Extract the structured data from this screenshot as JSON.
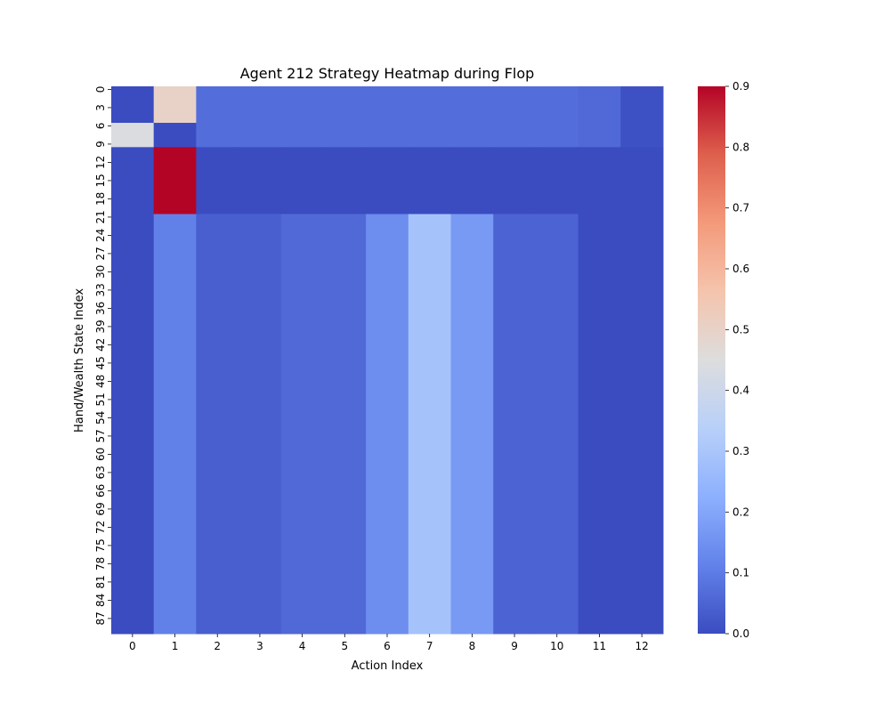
{
  "chart_data": {
    "type": "heatmap",
    "title": "Agent 212 Strategy Heatmap during Flop",
    "xlabel": "Action Index",
    "ylabel": "Hand/Wealth State Index",
    "x_categories": [
      0,
      1,
      2,
      3,
      4,
      5,
      6,
      7,
      8,
      9,
      10,
      11,
      12
    ],
    "y_tick_labels": [
      "0",
      "3",
      "6",
      "9",
      "12",
      "15",
      "18",
      "21",
      "24",
      "27",
      "30",
      "33",
      "36",
      "39",
      "42",
      "45",
      "48",
      "51",
      "54",
      "57",
      "60",
      "63",
      "66",
      "69",
      "72",
      "75",
      "78",
      "81",
      "84",
      "87"
    ],
    "y_tick_step": 3,
    "n_rows": 90,
    "colormap": "coolwarm",
    "vmin": 0.0,
    "vmax": 0.9,
    "colorbar_ticks": [
      "0.0",
      "0.1",
      "0.2",
      "0.3",
      "0.4",
      "0.5",
      "0.6",
      "0.7",
      "0.8",
      "0.9"
    ],
    "row_groups": [
      {
        "rows": [
          0,
          5
        ],
        "values": [
          0.0,
          0.5,
          0.07,
          0.07,
          0.07,
          0.07,
          0.07,
          0.07,
          0.07,
          0.07,
          0.07,
          0.06,
          0.01
        ]
      },
      {
        "rows": [
          6,
          9
        ],
        "values": [
          0.44,
          0.0,
          0.07,
          0.07,
          0.07,
          0.07,
          0.07,
          0.07,
          0.07,
          0.07,
          0.07,
          0.06,
          0.01
        ]
      },
      {
        "rows": [
          10,
          20
        ],
        "values": [
          0.0,
          0.9,
          0.0,
          0.0,
          0.0,
          0.0,
          0.0,
          0.0,
          0.0,
          0.0,
          0.0,
          0.0,
          0.0
        ]
      },
      {
        "rows": [
          21,
          89
        ],
        "values": [
          0.0,
          0.11,
          0.04,
          0.04,
          0.06,
          0.06,
          0.14,
          0.29,
          0.17,
          0.05,
          0.05,
          0.0,
          0.0
        ]
      }
    ]
  }
}
